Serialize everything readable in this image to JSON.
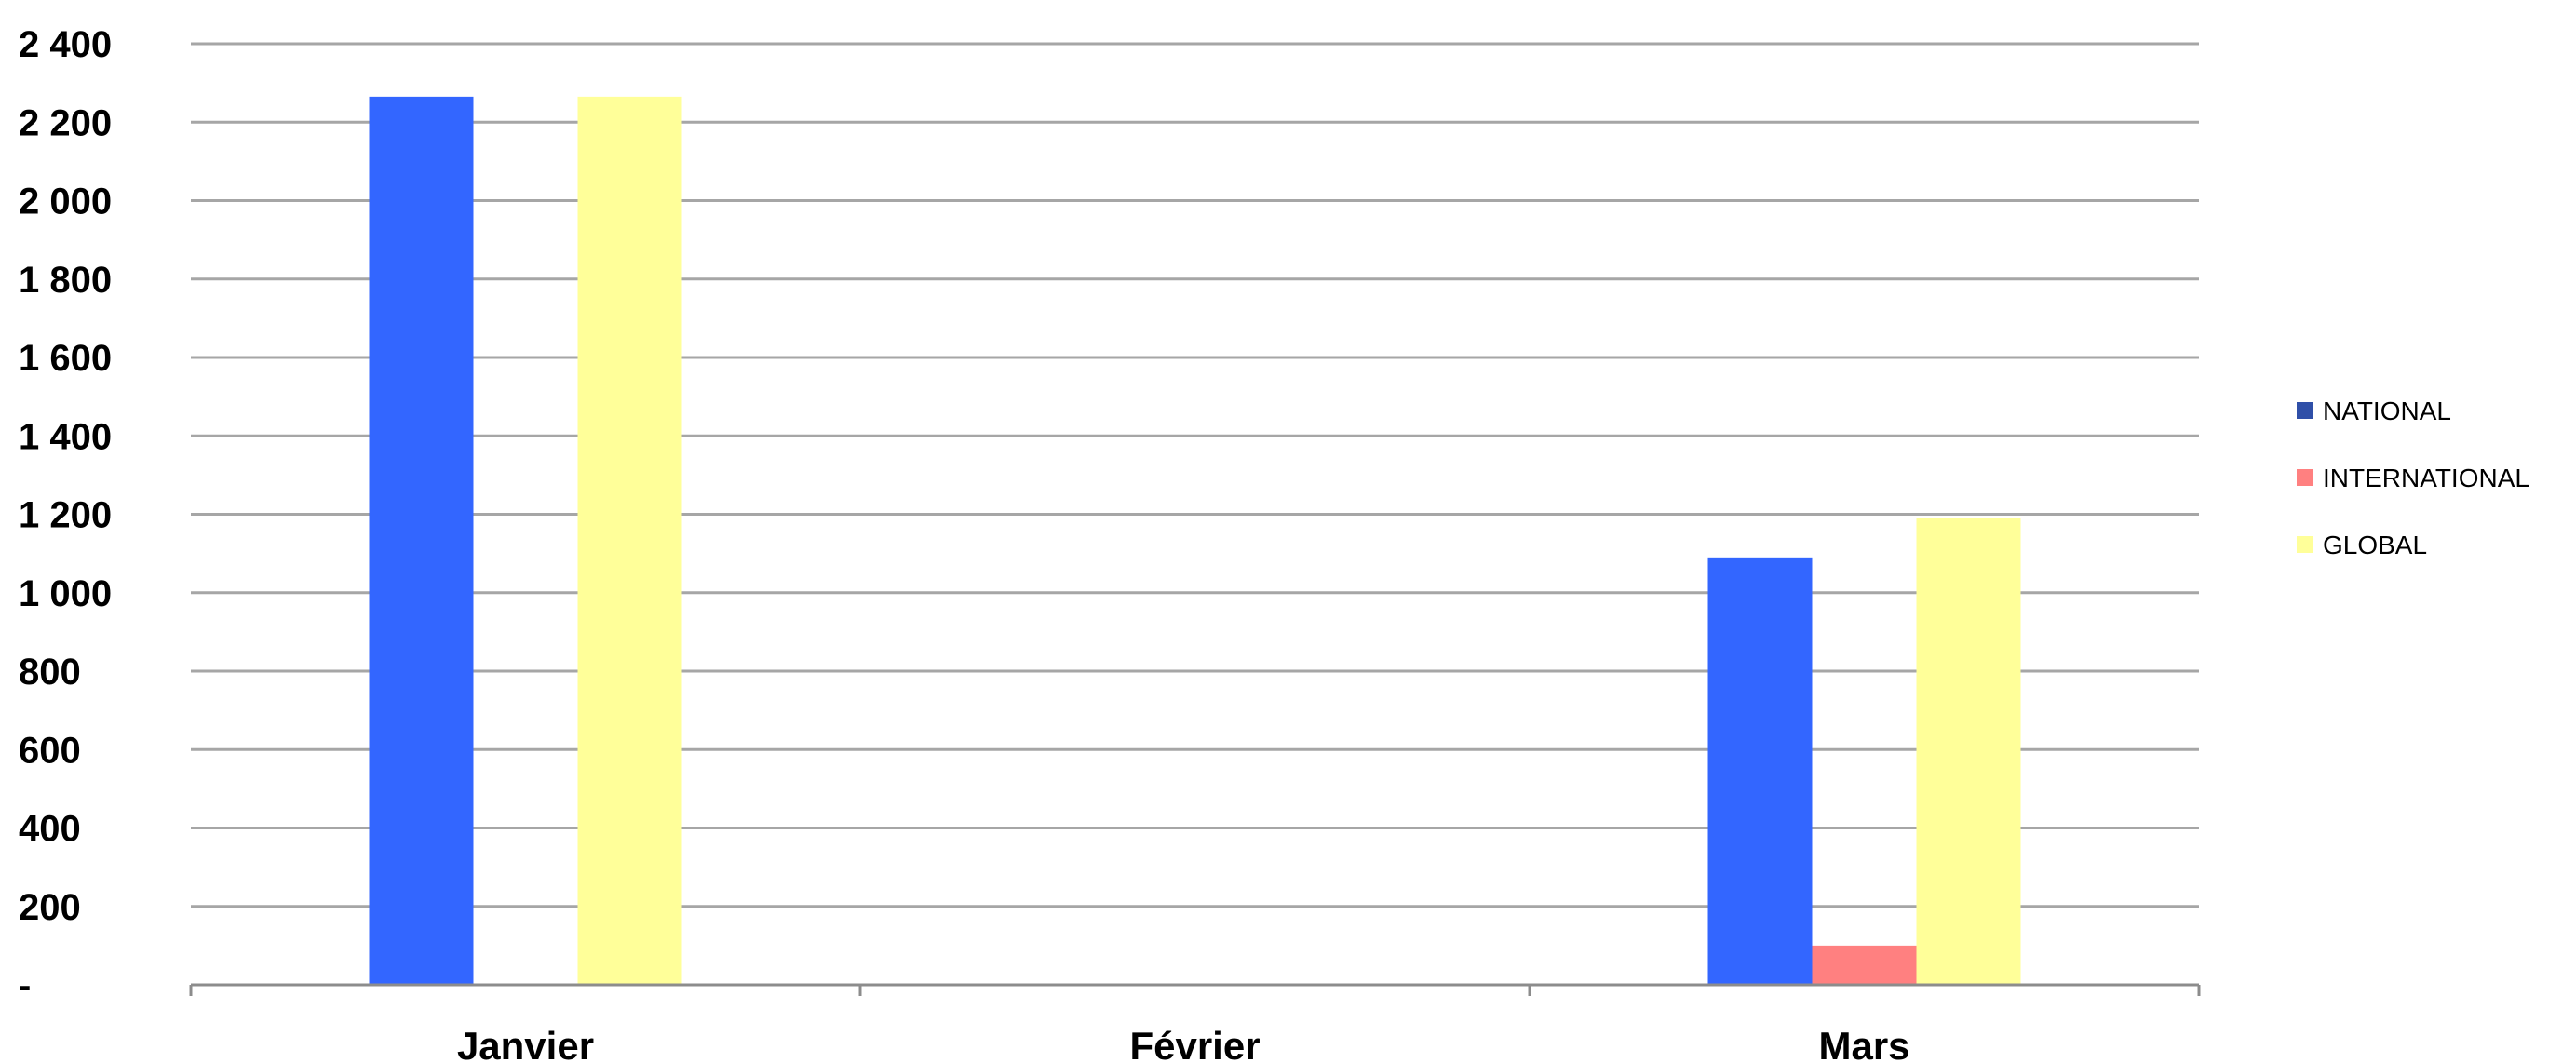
{
  "chart_data": {
    "type": "bar",
    "title": "",
    "xlabel": "",
    "ylabel": "",
    "categories": [
      "Janvier",
      "Février",
      "Mars"
    ],
    "series": [
      {
        "name": "NATIONAL",
        "color": "#3366ff",
        "legend_color": "#2f4fa8",
        "values": [
          2265,
          0,
          1090
        ]
      },
      {
        "name": "INTERNATIONAL",
        "color": "#ff8080",
        "legend_color": "#ff8080",
        "values": [
          0,
          0,
          100
        ]
      },
      {
        "name": "GLOBAL",
        "color": "#ffff99",
        "legend_color": "#ffff99",
        "values": [
          2265,
          0,
          1190
        ]
      }
    ],
    "ylim": [
      0,
      2400
    ],
    "yticks": [
      {
        "value": 0,
        "label": "-"
      },
      {
        "value": 200,
        "label": "200"
      },
      {
        "value": 400,
        "label": "400"
      },
      {
        "value": 600,
        "label": "600"
      },
      {
        "value": 800,
        "label": "800"
      },
      {
        "value": 1000,
        "label": "1 000"
      },
      {
        "value": 1200,
        "label": "1 200"
      },
      {
        "value": 1400,
        "label": "1 400"
      },
      {
        "value": 1600,
        "label": "1 600"
      },
      {
        "value": 1800,
        "label": "1 800"
      },
      {
        "value": 2000,
        "label": "2 000"
      },
      {
        "value": 2200,
        "label": "2 200"
      },
      {
        "value": 2400,
        "label": "2 400"
      }
    ],
    "grid": true,
    "gridline_color": "#a6a6a6",
    "legend_position": "right"
  }
}
